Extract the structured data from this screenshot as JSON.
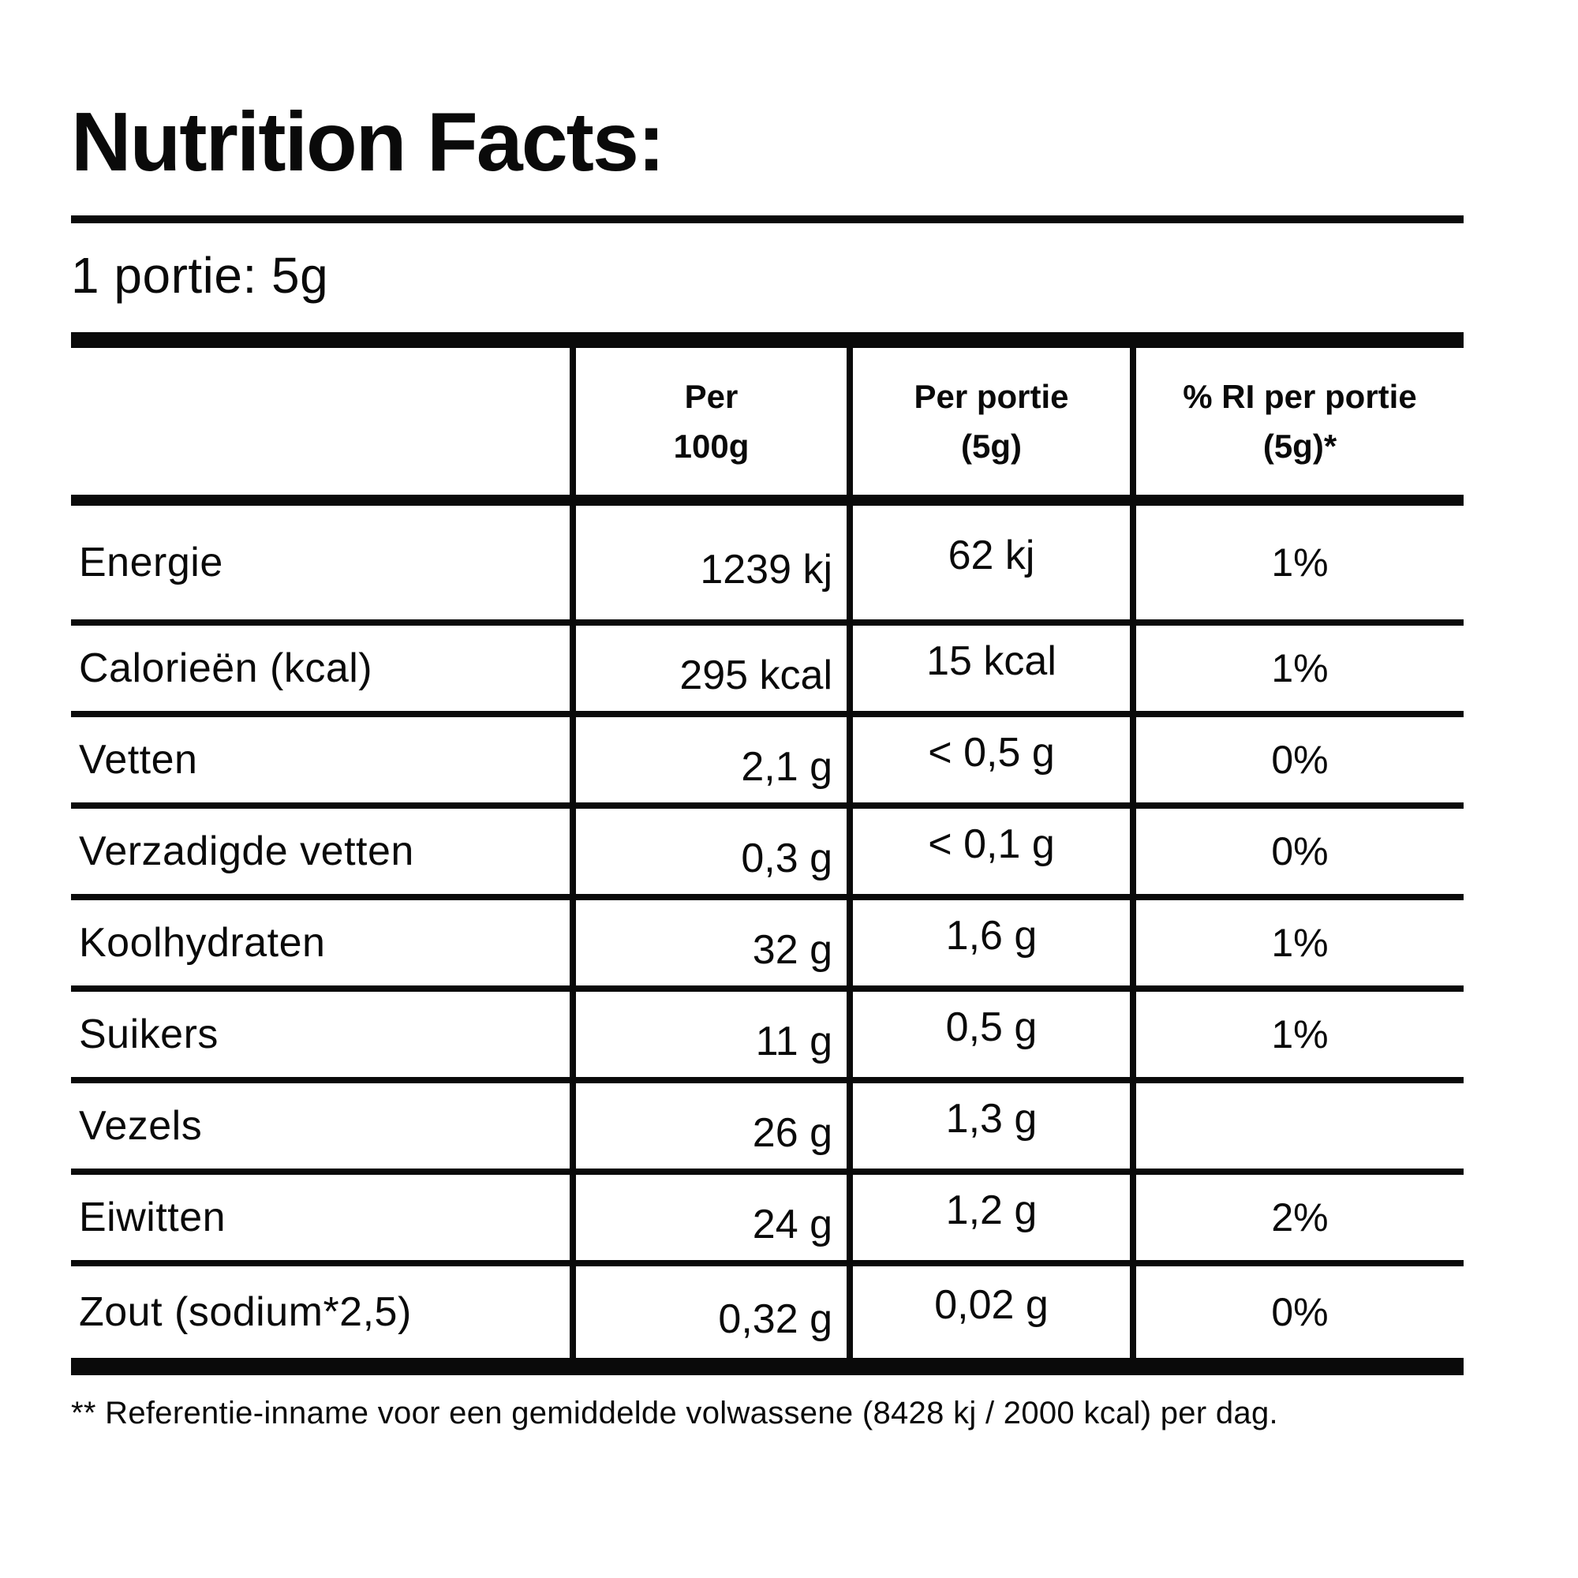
{
  "title": "Nutrition Facts:",
  "serving_line": "1 portie: 5g",
  "colors": {
    "text": "#0a0a0a",
    "background": "#ffffff"
  },
  "table": {
    "headers": {
      "label": "",
      "per_100g": {
        "line1": "Per",
        "line2": "100g"
      },
      "per_portie": {
        "line1": "Per portie",
        "line2": "(5g)"
      },
      "ri_per_portie": {
        "line1": "% RI per portie",
        "line2": "(5g)*"
      }
    },
    "rows": [
      {
        "label": "Energie",
        "per100g": "1239 kj",
        "per_portie": "62 kj",
        "ri": "1%"
      },
      {
        "label": "Calorieën (kcal)",
        "per100g": "295 kcal",
        "per_portie": "15 kcal",
        "ri": "1%"
      },
      {
        "label": "Vetten",
        "per100g": "2,1 g",
        "per_portie": "< 0,5 g",
        "ri": "0%"
      },
      {
        "label": "Verzadigde vetten",
        "per100g": "0,3 g",
        "per_portie": "< 0,1 g",
        "ri": "0%"
      },
      {
        "label": "Koolhydraten",
        "per100g": "32 g",
        "per_portie": "1,6 g",
        "ri": "1%"
      },
      {
        "label": "Suikers",
        "per100g": "11 g",
        "per_portie": "0,5 g",
        "ri": "1%"
      },
      {
        "label": "Vezels",
        "per100g": "26 g",
        "per_portie": "1,3 g",
        "ri": ""
      },
      {
        "label": "Eiwitten",
        "per100g": "24 g",
        "per_portie": "1,2 g",
        "ri": "2%"
      },
      {
        "label": "Zout (sodium*2,5)",
        "per100g": "0,32 g",
        "per_portie": "0,02 g",
        "ri": "0%"
      }
    ]
  },
  "footnote": "** Referentie-inname voor een gemiddelde volwassene (8428 kj / 2000 kcal) per dag."
}
